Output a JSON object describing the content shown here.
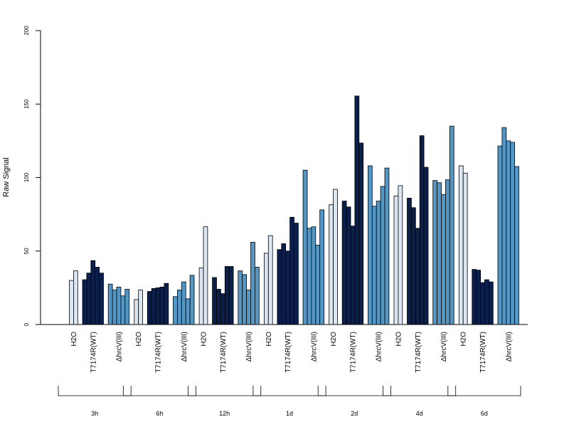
{
  "chart_data": {
    "type": "bar",
    "ylabel": "Raw Signal",
    "ylim": [
      0,
      200
    ],
    "yticks": [
      "0",
      "50",
      "100",
      "150",
      "200"
    ],
    "colors": {
      "H2O": "#dce6f2",
      "T7174R(WT)": "#0b1f4b",
      "ΔhrcV(III)": "#5497c5"
    },
    "group_labels": [
      "H2O",
      "T7174R(WT)",
      "ΔhrcV(III)"
    ],
    "timepoints": [
      {
        "label": "3h",
        "groups": [
          {
            "name": "H2O",
            "values": [
              30,
              36.5
            ]
          },
          {
            "name": "T7174R(WT)",
            "values": [
              30.5,
              35,
              43.5,
              39,
              35
            ]
          },
          {
            "name": "ΔhrcV(III)",
            "values": [
              27.5,
              23.5,
              25.5,
              19.5,
              24
            ]
          }
        ]
      },
      {
        "label": "6h",
        "groups": [
          {
            "name": "H2O",
            "values": [
              17,
              23.5
            ]
          },
          {
            "name": "T7174R(WT)",
            "values": [
              22.5,
              24.5,
              25,
              25.5,
              28
            ]
          },
          {
            "name": "ΔhrcV(III)",
            "values": [
              19,
              23.5,
              29,
              17.5,
              33.5
            ]
          }
        ]
      },
      {
        "label": "12h",
        "groups": [
          {
            "name": "H2O",
            "values": [
              38.5,
              66.5
            ]
          },
          {
            "name": "T7174R(WT)",
            "values": [
              32,
              24,
              21,
              39.5,
              39.5
            ]
          },
          {
            "name": "ΔhrcV(III)",
            "values": [
              36.5,
              34,
              23.5,
              56,
              39
            ]
          }
        ]
      },
      {
        "label": "1d",
        "groups": [
          {
            "name": "H2O",
            "values": [
              48.5,
              60.5
            ]
          },
          {
            "name": "T7174R(WT)",
            "values": [
              51,
              55,
              50,
              73,
              69
            ]
          },
          {
            "name": "ΔhrcV(III)",
            "values": [
              105,
              65.5,
              66.5,
              54,
              78
            ]
          }
        ]
      },
      {
        "label": "2d",
        "groups": [
          {
            "name": "H2O",
            "values": [
              81.5,
              92
            ]
          },
          {
            "name": "T7174R(WT)",
            "values": [
              84,
              80,
              67,
              155.5,
              123.5
            ]
          },
          {
            "name": "ΔhrcV(III)",
            "values": [
              108,
              80.5,
              84,
              94,
              106.5
            ]
          }
        ]
      },
      {
        "label": "4d",
        "groups": [
          {
            "name": "H2O",
            "values": [
              87.5,
              94.5
            ]
          },
          {
            "name": "T7174R(WT)",
            "values": [
              86,
              79.5,
              65.5,
              128.5,
              107
            ]
          },
          {
            "name": "ΔhrcV(III)",
            "values": [
              98,
              96.5,
              88.5,
              98.5,
              135
            ]
          }
        ]
      },
      {
        "label": "6d",
        "groups": [
          {
            "name": "H2O",
            "values": [
              108,
              103
            ]
          },
          {
            "name": "T7174R(WT)",
            "values": [
              37.5,
              37,
              28.5,
              30.5,
              29
            ]
          },
          {
            "name": "ΔhrcV(III)",
            "values": [
              121.5,
              134,
              125,
              124,
              107.5
            ]
          }
        ]
      }
    ]
  }
}
